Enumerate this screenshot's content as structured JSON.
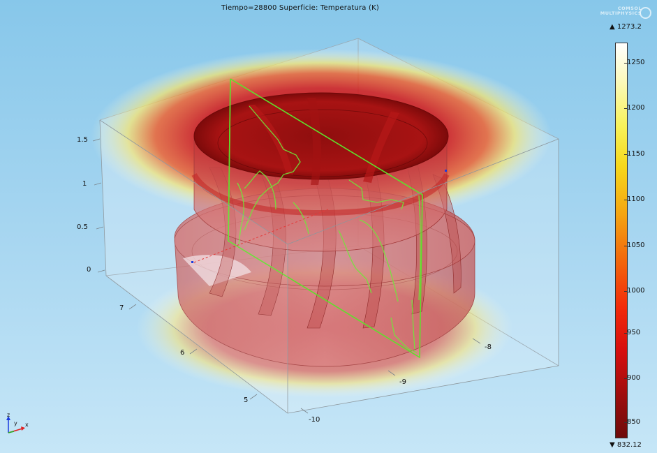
{
  "plot": {
    "title": "Tiempo=28800   Superficie: Temperatura (K)"
  },
  "logo": {
    "line1": "COMSOL",
    "line2": "MULTIPHYSICS"
  },
  "colorbar": {
    "max_label": "▲ 1273.2",
    "min_label": "▼ 832.12",
    "ticks": [
      "1250",
      "1200",
      "1150",
      "1100",
      "1050",
      "1000",
      "950",
      "900",
      "850"
    ],
    "colors": [
      "#6e0b0b",
      "#d60e0e",
      "#f2680c",
      "#f6d81c",
      "#ffffff"
    ]
  },
  "axes": {
    "z_ticks": [
      "1.5",
      "1",
      "0.5",
      "0"
    ],
    "y_ticks": [
      "7",
      "6",
      "5"
    ],
    "x_ticks": [
      "-8",
      "-9",
      "-10"
    ]
  },
  "triad": {
    "z": "z",
    "y": "y",
    "x": "x"
  }
}
